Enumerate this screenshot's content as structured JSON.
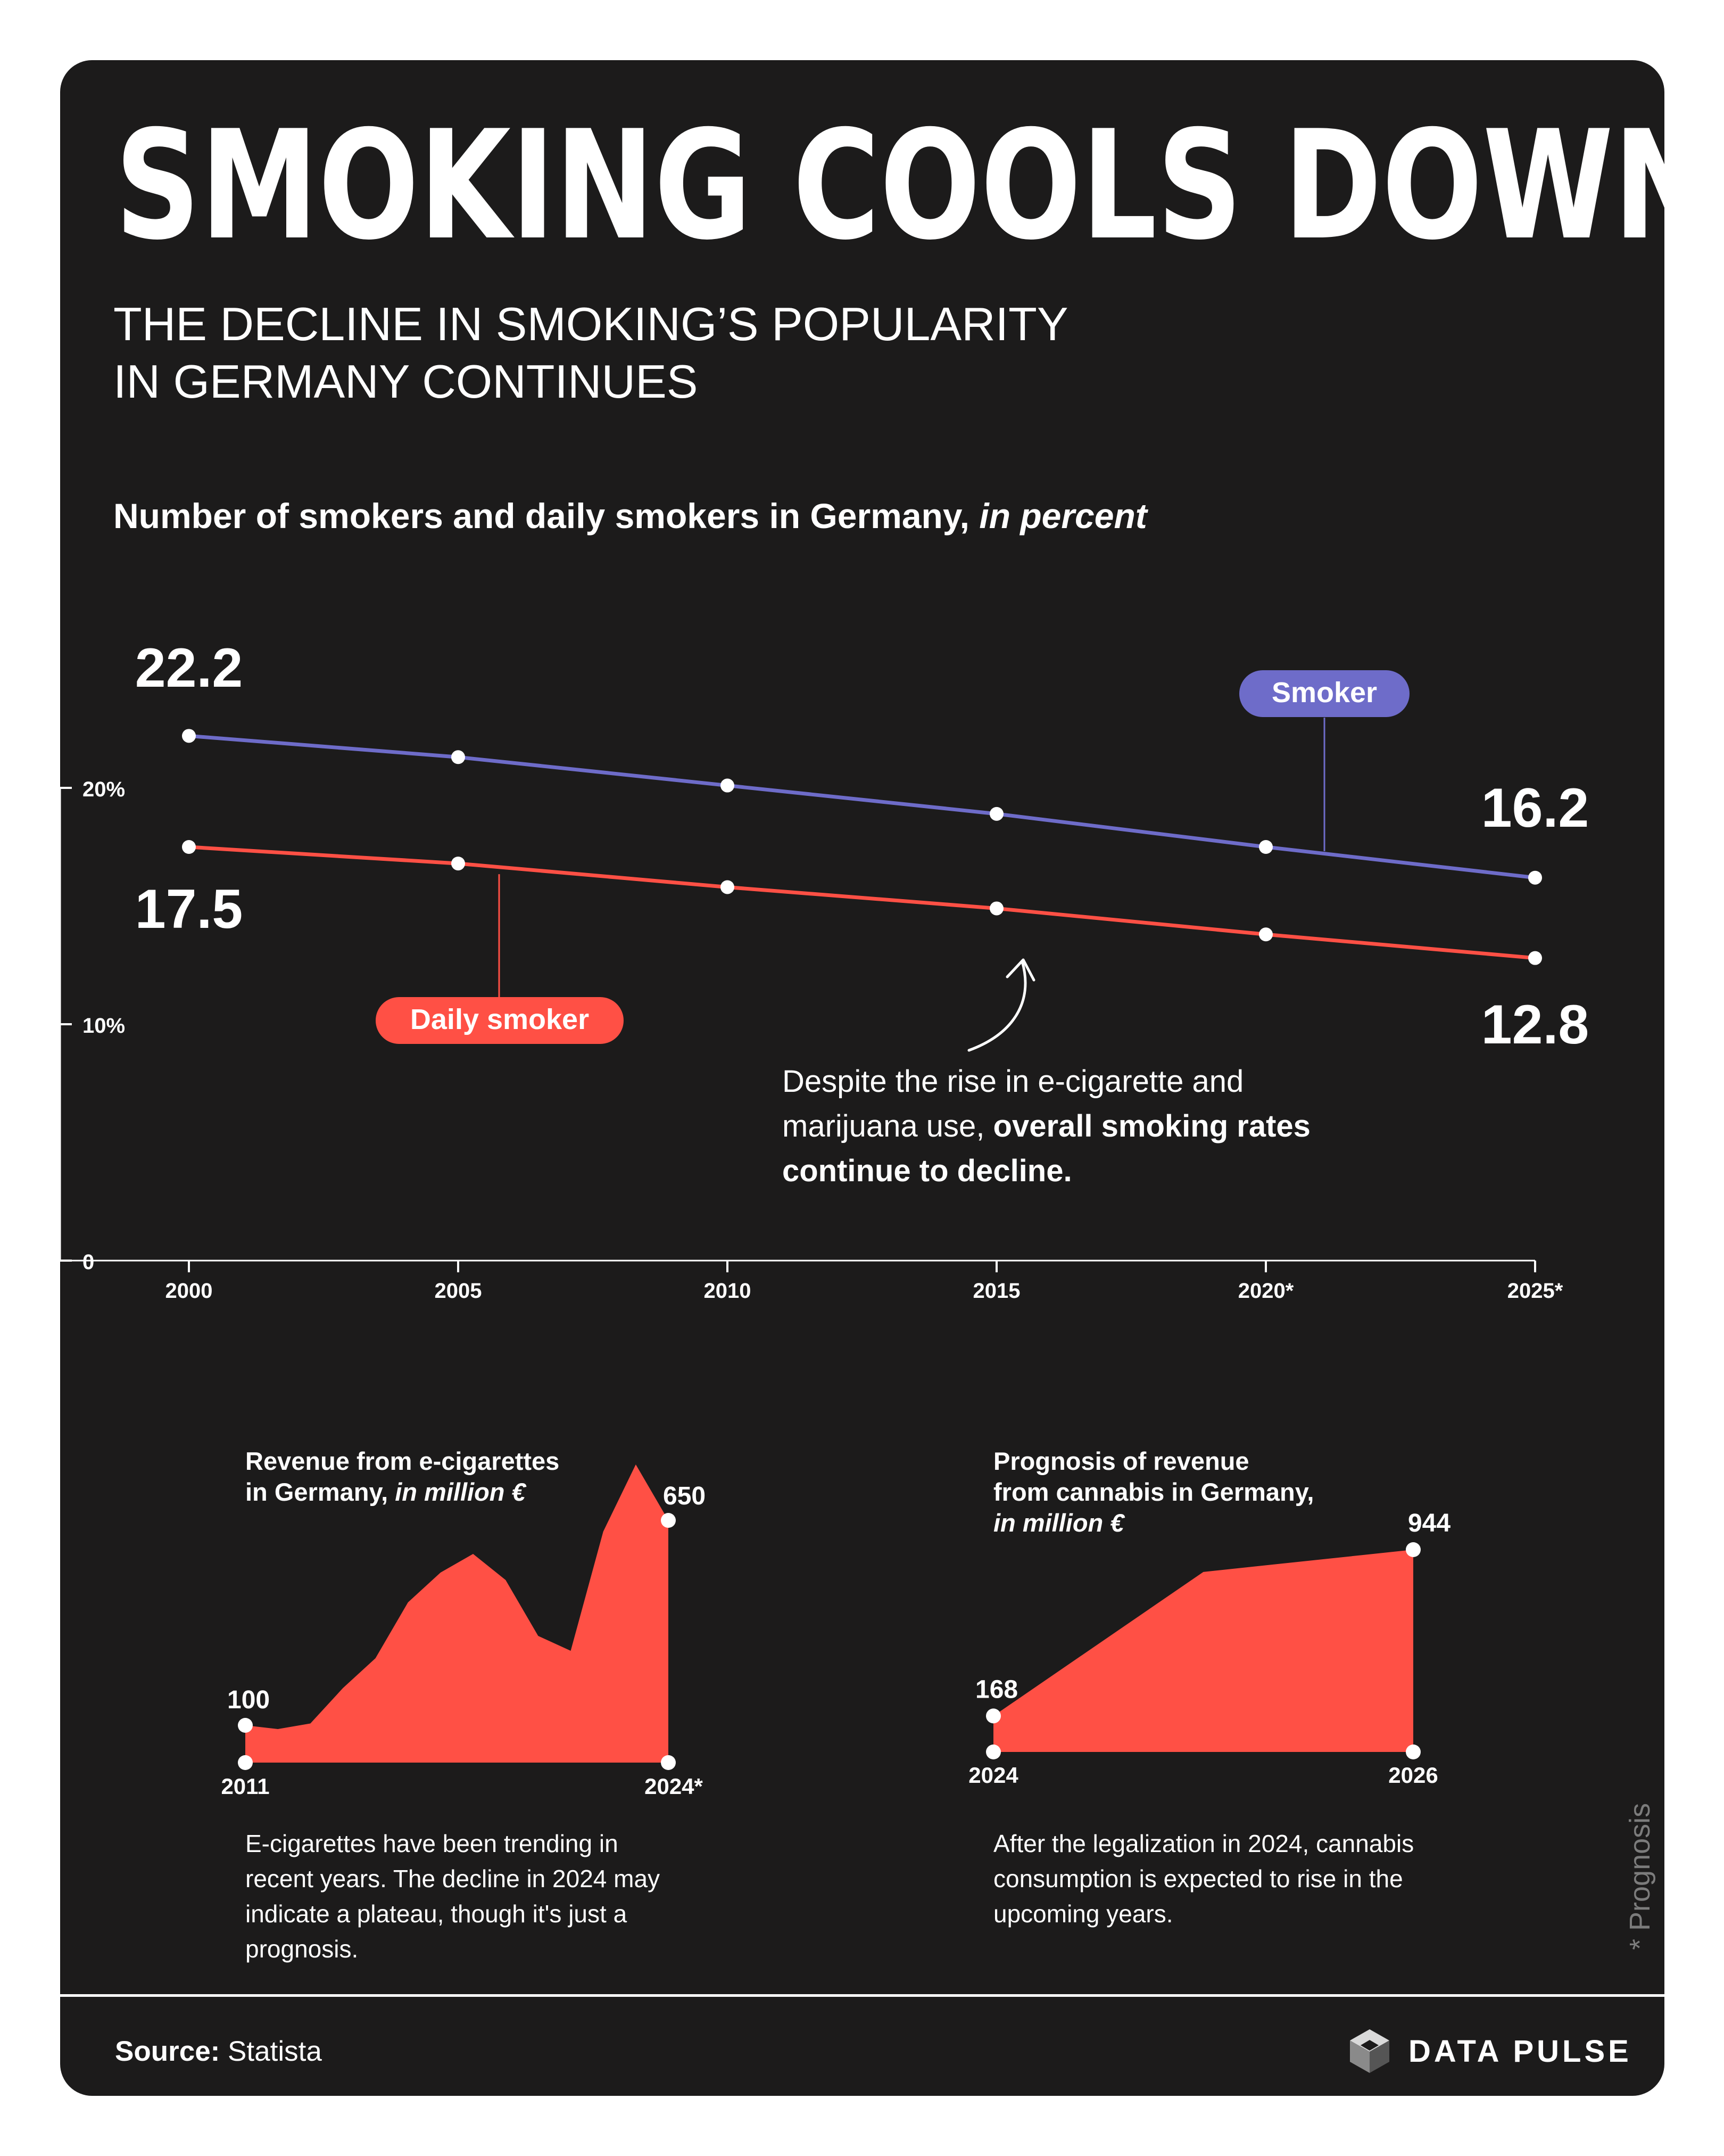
{
  "header": {
    "title": "SMOKING COOLS DOWN",
    "subtitle_lines": [
      "THE DECLINE IN SMOKING’S POPULARITY",
      "IN GERMANY CONTINUES"
    ]
  },
  "main_chart": {
    "heading_plain": "Number of smokers and daily smokers in Germany, ",
    "heading_italic": "in percent",
    "note_plain": "Despite the rise in e-cigarette and marijuana use, ",
    "note_bold": "overall smoking rates continue to decline."
  },
  "ecig_chart": {
    "title_line1": "Revenue from e-cigarettes",
    "title_line2_plain": "in Germany, ",
    "title_line2_italic": "in million €",
    "note": "E-cigarettes have been trending in recent years. The decline in 2024 may indicate a plateau, though it's just a prognosis."
  },
  "cannabis_chart": {
    "title_line1": "Prognosis of revenue",
    "title_line2": "from cannabis in Germany,",
    "title_line3_italic": "in million €",
    "note": "After the legalization in 2024, cannabis consumption is expected to rise in the upcoming years."
  },
  "footnote": "* Prognosis",
  "footer": {
    "source_label": "Source:",
    "source_value": " Statista",
    "brand": "DATA PULSE"
  },
  "colors": {
    "background": "#1c1b1b",
    "smoker": "#6e6cc9",
    "daily_smoker": "#ff5045",
    "area": "#ff5045",
    "text": "#ffffff"
  },
  "chart_data": [
    {
      "type": "line",
      "title": "Number of smokers and daily smokers in Germany, in percent",
      "x": [
        "2000",
        "2005",
        "2010",
        "2015",
        "2020*",
        "2025*"
      ],
      "series": [
        {
          "name": "Smoker",
          "values": [
            22.2,
            21.3,
            20.1,
            18.9,
            17.5,
            16.2
          ]
        },
        {
          "name": "Daily smoker",
          "values": [
            17.5,
            16.8,
            15.8,
            14.9,
            13.8,
            12.8
          ]
        }
      ],
      "labels": {
        "smoker_start": "22.2",
        "smoker_end": "16.2",
        "daily_start": "17.5",
        "daily_end": "12.8"
      },
      "yticks": [
        "0",
        "10%",
        "20%"
      ],
      "ylim": [
        0,
        24
      ],
      "grid": false
    },
    {
      "type": "area",
      "title": "Revenue from e-cigarettes in Germany, in million €",
      "x_labels": [
        "2011",
        "2024*"
      ],
      "x": [
        2011,
        2012,
        2013,
        2014,
        2015,
        2016,
        2017,
        2018,
        2019,
        2020,
        2021,
        2022,
        2023,
        2024
      ],
      "values": [
        100,
        90,
        105,
        200,
        280,
        430,
        510,
        560,
        490,
        340,
        300,
        620,
        800,
        650
      ],
      "labels": [
        "100",
        "650"
      ],
      "ylim": [
        0,
        800
      ]
    },
    {
      "type": "area",
      "title": "Prognosis of revenue from cannabis in Germany, in million €",
      "x_labels": [
        "2024",
        "2026"
      ],
      "x": [
        2024,
        2025,
        2026
      ],
      "values": [
        168,
        840,
        944
      ],
      "labels": [
        "168",
        "944"
      ],
      "ylim": [
        0,
        944
      ]
    }
  ]
}
